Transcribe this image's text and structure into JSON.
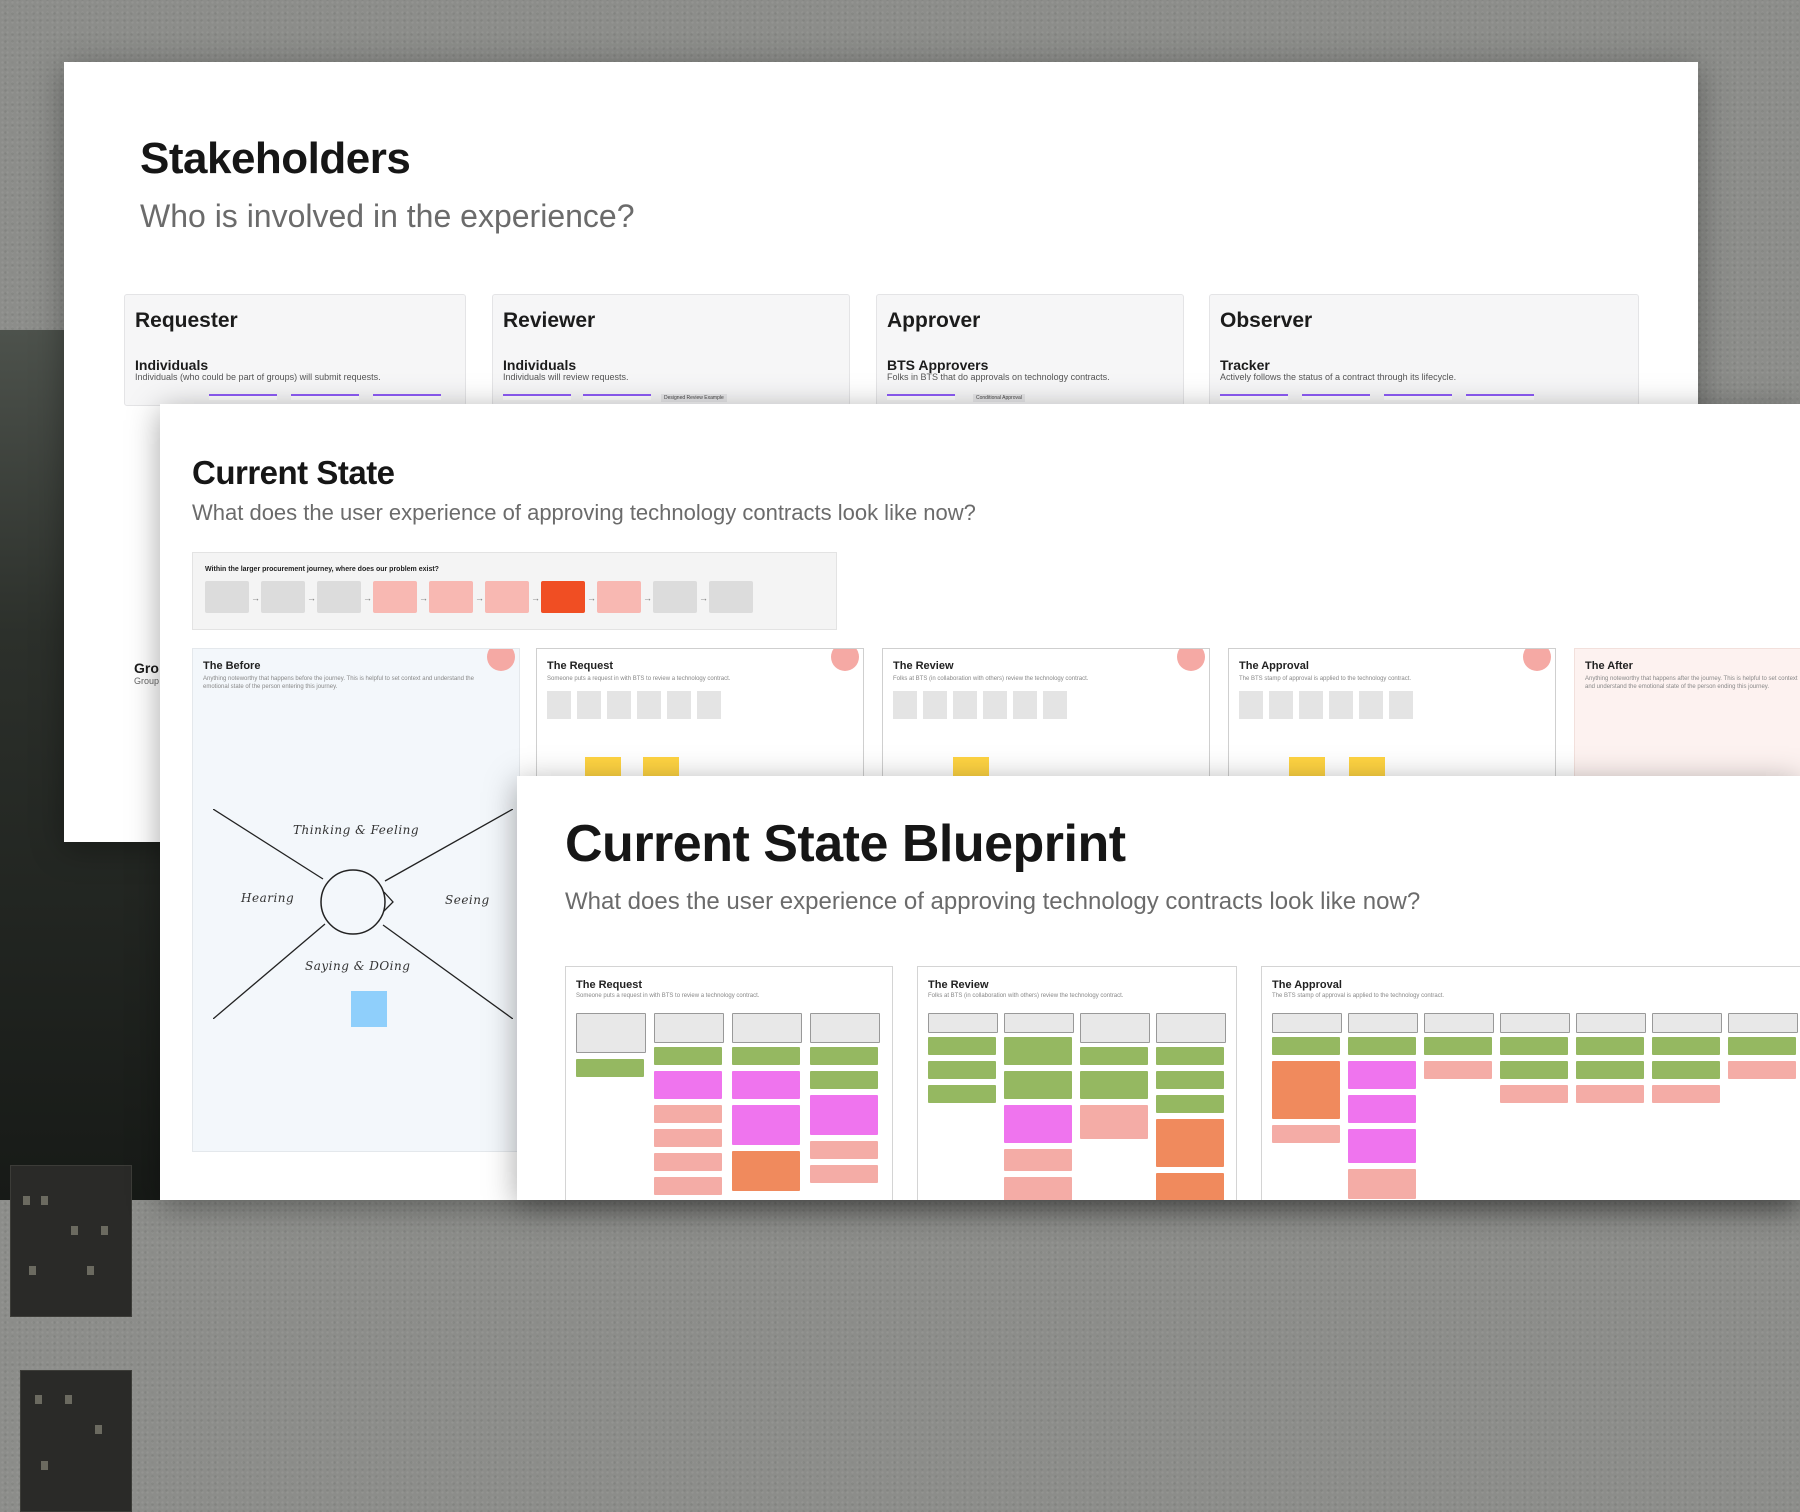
{
  "stakeholders": {
    "title": "Stakeholders",
    "subtitle": "Who is involved in the experience?",
    "cards": [
      {
        "name": "Requester",
        "type": "Individuals",
        "desc": "Individuals (who could be part of groups) will submit requests.",
        "extra": ""
      },
      {
        "name": "Reviewer",
        "type": "Individuals",
        "desc": "Individuals will review requests.",
        "extra": "Designed Review Example"
      },
      {
        "name": "Approver",
        "type": "BTS Approvers",
        "desc": "Folks in BTS that do approvals on technology contracts.",
        "extra": "Conditional Approval"
      },
      {
        "name": "Observer",
        "type": "Tracker",
        "desc": "Actively follows the status of a contract through its lifecycle.",
        "extra": ""
      }
    ],
    "groups_label": "Gro",
    "groups_sub": "Group"
  },
  "current_state": {
    "title": "Current State",
    "subtitle": "What does the user experience of approving technology contracts look like now?",
    "journey_title": "Within the larger procurement journey, where does our problem exist?",
    "phases": [
      {
        "title": "The Before",
        "desc": "Anything noteworthy that happens before the journey. This is helpful to set context and understand the emotional state of the person entering this journey."
      },
      {
        "title": "The Request",
        "desc": "Someone puts a request in with BTS to review a technology contract."
      },
      {
        "title": "The Review",
        "desc": "Folks at BTS (in collaboration with others) review the technology contract."
      },
      {
        "title": "The Approval",
        "desc": "The BTS stamp of approval is applied to the technology contract."
      },
      {
        "title": "The After",
        "desc": "Anything noteworthy that happens after the journey. This is helpful to set context and understand the emotional state of the person ending this journey."
      }
    ],
    "empathy": {
      "top": "Thinking & Feeling",
      "left": "Hearing",
      "right": "Seeing",
      "bottom": "Saying & DOing"
    },
    "colors": {
      "journey_highlight": "#f04e23",
      "journey_box": "#f8b8b2",
      "journey_neutral": "#dcdcdc",
      "sticky_yellow": "#ffd442",
      "sticky_blue": "#8fcffb"
    }
  },
  "blueprint": {
    "title": "Current State Blueprint",
    "subtitle": "What does the user experience of approving technology contracts look like now?",
    "cards": [
      {
        "title": "The Request",
        "desc": "Someone puts a request in with BTS to review a technology contract."
      },
      {
        "title": "The Review",
        "desc": "Folks at BTS (in collaboration with others) review the technology contract."
      },
      {
        "title": "The Approval",
        "desc": "The BTS stamp of approval is applied to the technology contract."
      }
    ],
    "colors": {
      "step": "#e8e8e8",
      "actor": "#95b861",
      "feeling": "#ef74ee",
      "system": "#f4aca6",
      "issue": "#f08a5d"
    }
  }
}
